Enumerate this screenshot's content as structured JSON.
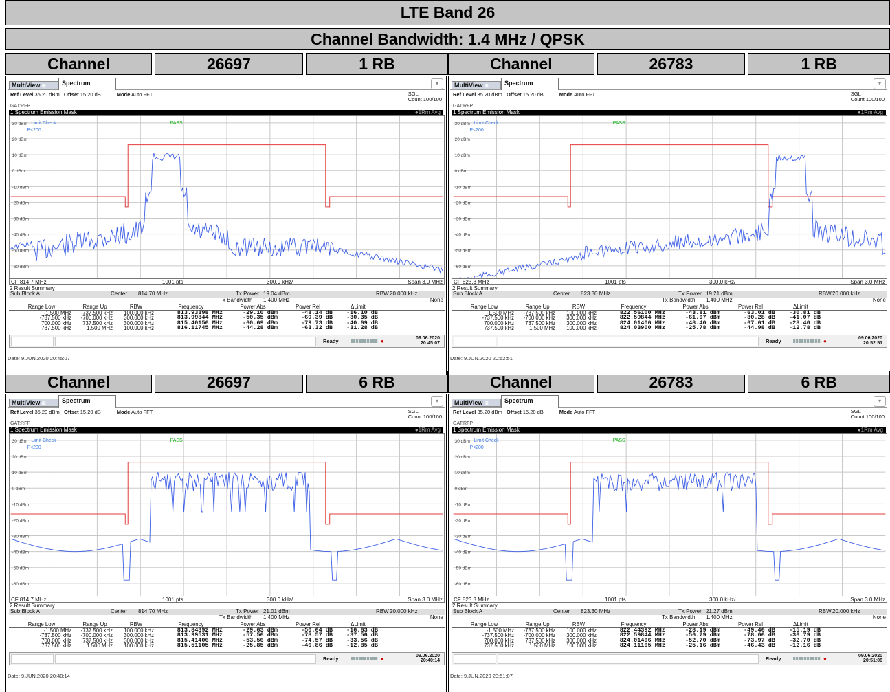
{
  "title": "LTE Band 26",
  "subtitle": "Channel Bandwidth: 1.4 MHz / QPSK",
  "chlabel": "Channel",
  "ui": {
    "multiview": "MultiView",
    "spectrum": "Spectrum",
    "reflevel": "Ref Level",
    "reflevel_val": "35.20 dBm",
    "offset": "Offset",
    "offset_val": "15.20 dB",
    "mode": "Mode",
    "mode_val": "Auto FFT",
    "sgl": "SGL",
    "count": "Count 100/100",
    "gat": "GAT:RFP",
    "sem": "1 Spectrum Emission Mask",
    "rm": "●1Rm Avg",
    "limit": "Limit Check",
    "pass": "PASS",
    "p200": "P<200",
    "pts": "1001 pts",
    "div": "300.0 kHz/",
    "span": "Span 3.0 MHz",
    "result": "2 Result Summary",
    "subblock": "Sub Block A",
    "center": "Center",
    "txpower": "Tx Power",
    "txbw": "Tx Bandwidth",
    "txbw_val": "1.400 MHz",
    "rbw": "RBW",
    "rbw_val": "20.000 kHz",
    "none": "None",
    "ready": "Ready",
    "cols": [
      "Range Low",
      "Range Up",
      "RBW",
      "Frequency",
      "Power Abs",
      "Power Rel",
      "ΔLimit"
    ],
    "ranges": [
      [
        "-1.500 MHz",
        "-737.500 kHz",
        "100.000 kHz"
      ],
      [
        "-737.500 kHz",
        "-700.000 kHz",
        "300.000 kHz"
      ],
      [
        "700.000 kHz",
        "737.500 kHz",
        "300.000 kHz"
      ],
      [
        "737.500 kHz",
        "1.500 MHz",
        "100.000 kHz"
      ]
    ],
    "ylabels": [
      "30 dBm",
      "20 dBm",
      "10 dBm",
      "0 dBm",
      "-10 dBm",
      "-20 dBm",
      "-30 dBm",
      "-40 dBm",
      "-50 dBm",
      "-60 dBm"
    ]
  },
  "panels": [
    {
      "channel": "26697",
      "rb": "1 RB",
      "cf": "CF 814.7 MHz",
      "center": "814.70 MHz",
      "txp": "19.04 dBm",
      "date": "Date: 9.JUN.2020  20:45:07",
      "sdate": "09.06.2020",
      "stime": "20:45:07",
      "rows": [
        [
          "813.93398 MHz",
          "-29.10 dBm",
          "-48.14 dB",
          "-16.10 dB"
        ],
        [
          "813.99844 MHz",
          "-50.35 dBm",
          "-69.39 dB",
          "-30.35 dB"
        ],
        [
          "815.40156 MHz",
          "-60.69 dBm",
          "-79.73 dB",
          "-40.69 dB"
        ],
        [
          "816.11745 MHz",
          "-44.28 dBm",
          "-63.32 dB",
          "-31.28 dB"
        ]
      ]
    },
    {
      "channel": "26783",
      "rb": "1 RB",
      "cf": "CF 823.3 MHz",
      "center": "823.30 MHz",
      "txp": "19.21 dBm",
      "date": "Date: 9.JUN.2020  20:52:51",
      "sdate": "09.06.2020",
      "stime": "20:52:51",
      "rows": [
        [
          "822.56100 MHz",
          "-43.81 dBm",
          "-63.01 dB",
          "-30.81 dB"
        ],
        [
          "822.59844 MHz",
          "-61.07 dBm",
          "-80.28 dB",
          "-41.07 dB"
        ],
        [
          "824.01406 MHz",
          "-48.40 dBm",
          "-67.61 dB",
          "-28.40 dB"
        ],
        [
          "824.03900 MHz",
          "-25.78 dBm",
          "-44.98 dB",
          "-12.78 dB"
        ]
      ]
    },
    {
      "channel": "26697",
      "rb": "6 RB",
      "cf": "CF 814.7 MHz",
      "center": "814.70 MHz",
      "txp": "21.01 dBm",
      "date": "Date: 9.JUN.2020  20:40:14",
      "sdate": "09.06.2020",
      "stime": "20:40:14",
      "rows": [
        [
          "813.84392 MHz",
          "-29.63 dBm",
          "-50.64 dB",
          "-16.63 dB"
        ],
        [
          "813.99531 MHz",
          "-57.56 dBm",
          "-78.57 dB",
          "-37.56 dB"
        ],
        [
          "815.41406 MHz",
          "-53.56 dBm",
          "-74.57 dB",
          "-33.56 dB"
        ],
        [
          "815.51105 MHz",
          "-25.85 dBm",
          "-46.86 dB",
          "-12.85 dB"
        ]
      ]
    },
    {
      "channel": "26783",
      "rb": "6 RB",
      "cf": "CF 823.3 MHz",
      "center": "823.30 MHz",
      "txp": "21.27 dBm",
      "date": "Date: 9.JUN.2020  20:51:07",
      "sdate": "09.06.2020",
      "stime": "20:51:06",
      "rows": [
        [
          "822.44392 MHz",
          "-28.19 dBm",
          "-49.46 dB",
          "-15.19 dB"
        ],
        [
          "822.59844 MHz",
          "-56.79 dBm",
          "-78.06 dB",
          "-36.79 dB"
        ],
        [
          "824.01406 MHz",
          "-52.70 dBm",
          "-73.97 dB",
          "-32.70 dB"
        ],
        [
          "824.11105 MHz",
          "-25.16 dBm",
          "-46.43 dB",
          "-12.16 dB"
        ]
      ]
    }
  ]
}
